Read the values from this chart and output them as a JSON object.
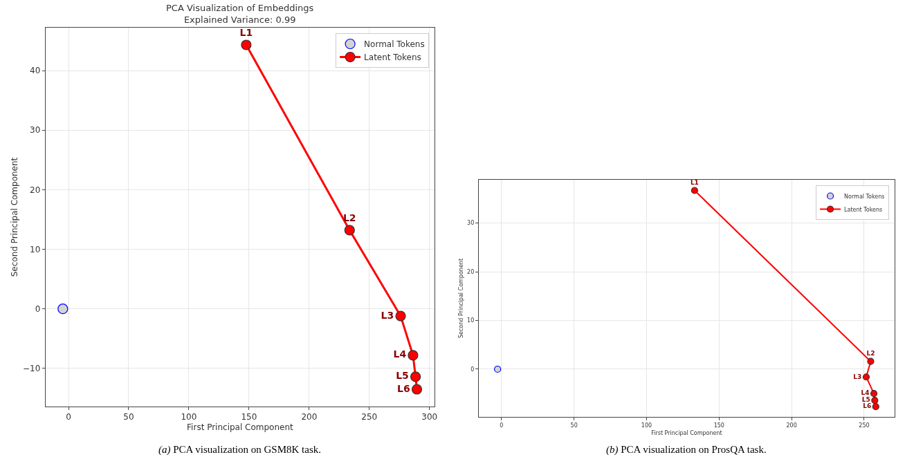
{
  "chart_data": [
    {
      "type": "scatter",
      "title": "PCA Visualization of Embeddings\nExplained Variance: 0.99",
      "xlabel": "First Principal Component",
      "ylabel": "Second Principal Component",
      "annotations": [
        "(a) PCA visualization on GSM8K task."
      ],
      "xlim": [
        -19.1,
        304.2
      ],
      "ylim": [
        -16.4,
        47.2
      ],
      "xticks": [
        0,
        50,
        100,
        150,
        200,
        250,
        300
      ],
      "yticks": [
        -10,
        0,
        10,
        20,
        30,
        40
      ],
      "grid": true,
      "legend": "top right",
      "marker": "circle",
      "series": [
        {
          "name": "Normal Tokens",
          "color": "#d3d3d3",
          "x": [
            -4.7
          ],
          "values": [
            0
          ]
        },
        {
          "name": "Latent Tokens",
          "type": "line",
          "color": "#ff0000",
          "x": [
            147.7,
            233.6,
            276,
            286.3,
            288.4,
            289.5
          ],
          "values": [
            44.3,
            13.2,
            -1.2,
            -7.8,
            -11.4,
            -13.5
          ],
          "value_labels": [
            "L1",
            "L2",
            "L3",
            "L4",
            "L5",
            "L6"
          ]
        }
      ]
    },
    {
      "type": "scatter",
      "xlabel": "First Principal Component",
      "ylabel": "Second Principal Component",
      "annotations": [
        "(b) PCA visualization on ProsQA task."
      ],
      "xlim": [
        -15.7,
        271
      ],
      "ylim": [
        -9.8,
        38.9
      ],
      "xticks": [
        0,
        50,
        100,
        150,
        200,
        250
      ],
      "yticks": [
        0,
        10,
        20,
        30
      ],
      "grid": true,
      "legend": "top right",
      "marker": "circle",
      "series": [
        {
          "name": "Normal Tokens",
          "color": "#d3d3d3",
          "x": [
            -2.7
          ],
          "values": [
            0
          ]
        },
        {
          "name": "Latent Tokens",
          "type": "line",
          "color": "#ff0000",
          "x": [
            133.1,
            254.5,
            251.4,
            256.7,
            257.3,
            258.0
          ],
          "values": [
            36.7,
            1.6,
            -1.6,
            -5.0,
            -6.4,
            -7.7
          ],
          "value_labels": [
            "L1",
            "L2",
            "L3",
            "L4",
            "L5",
            "L6"
          ]
        }
      ]
    }
  ]
}
